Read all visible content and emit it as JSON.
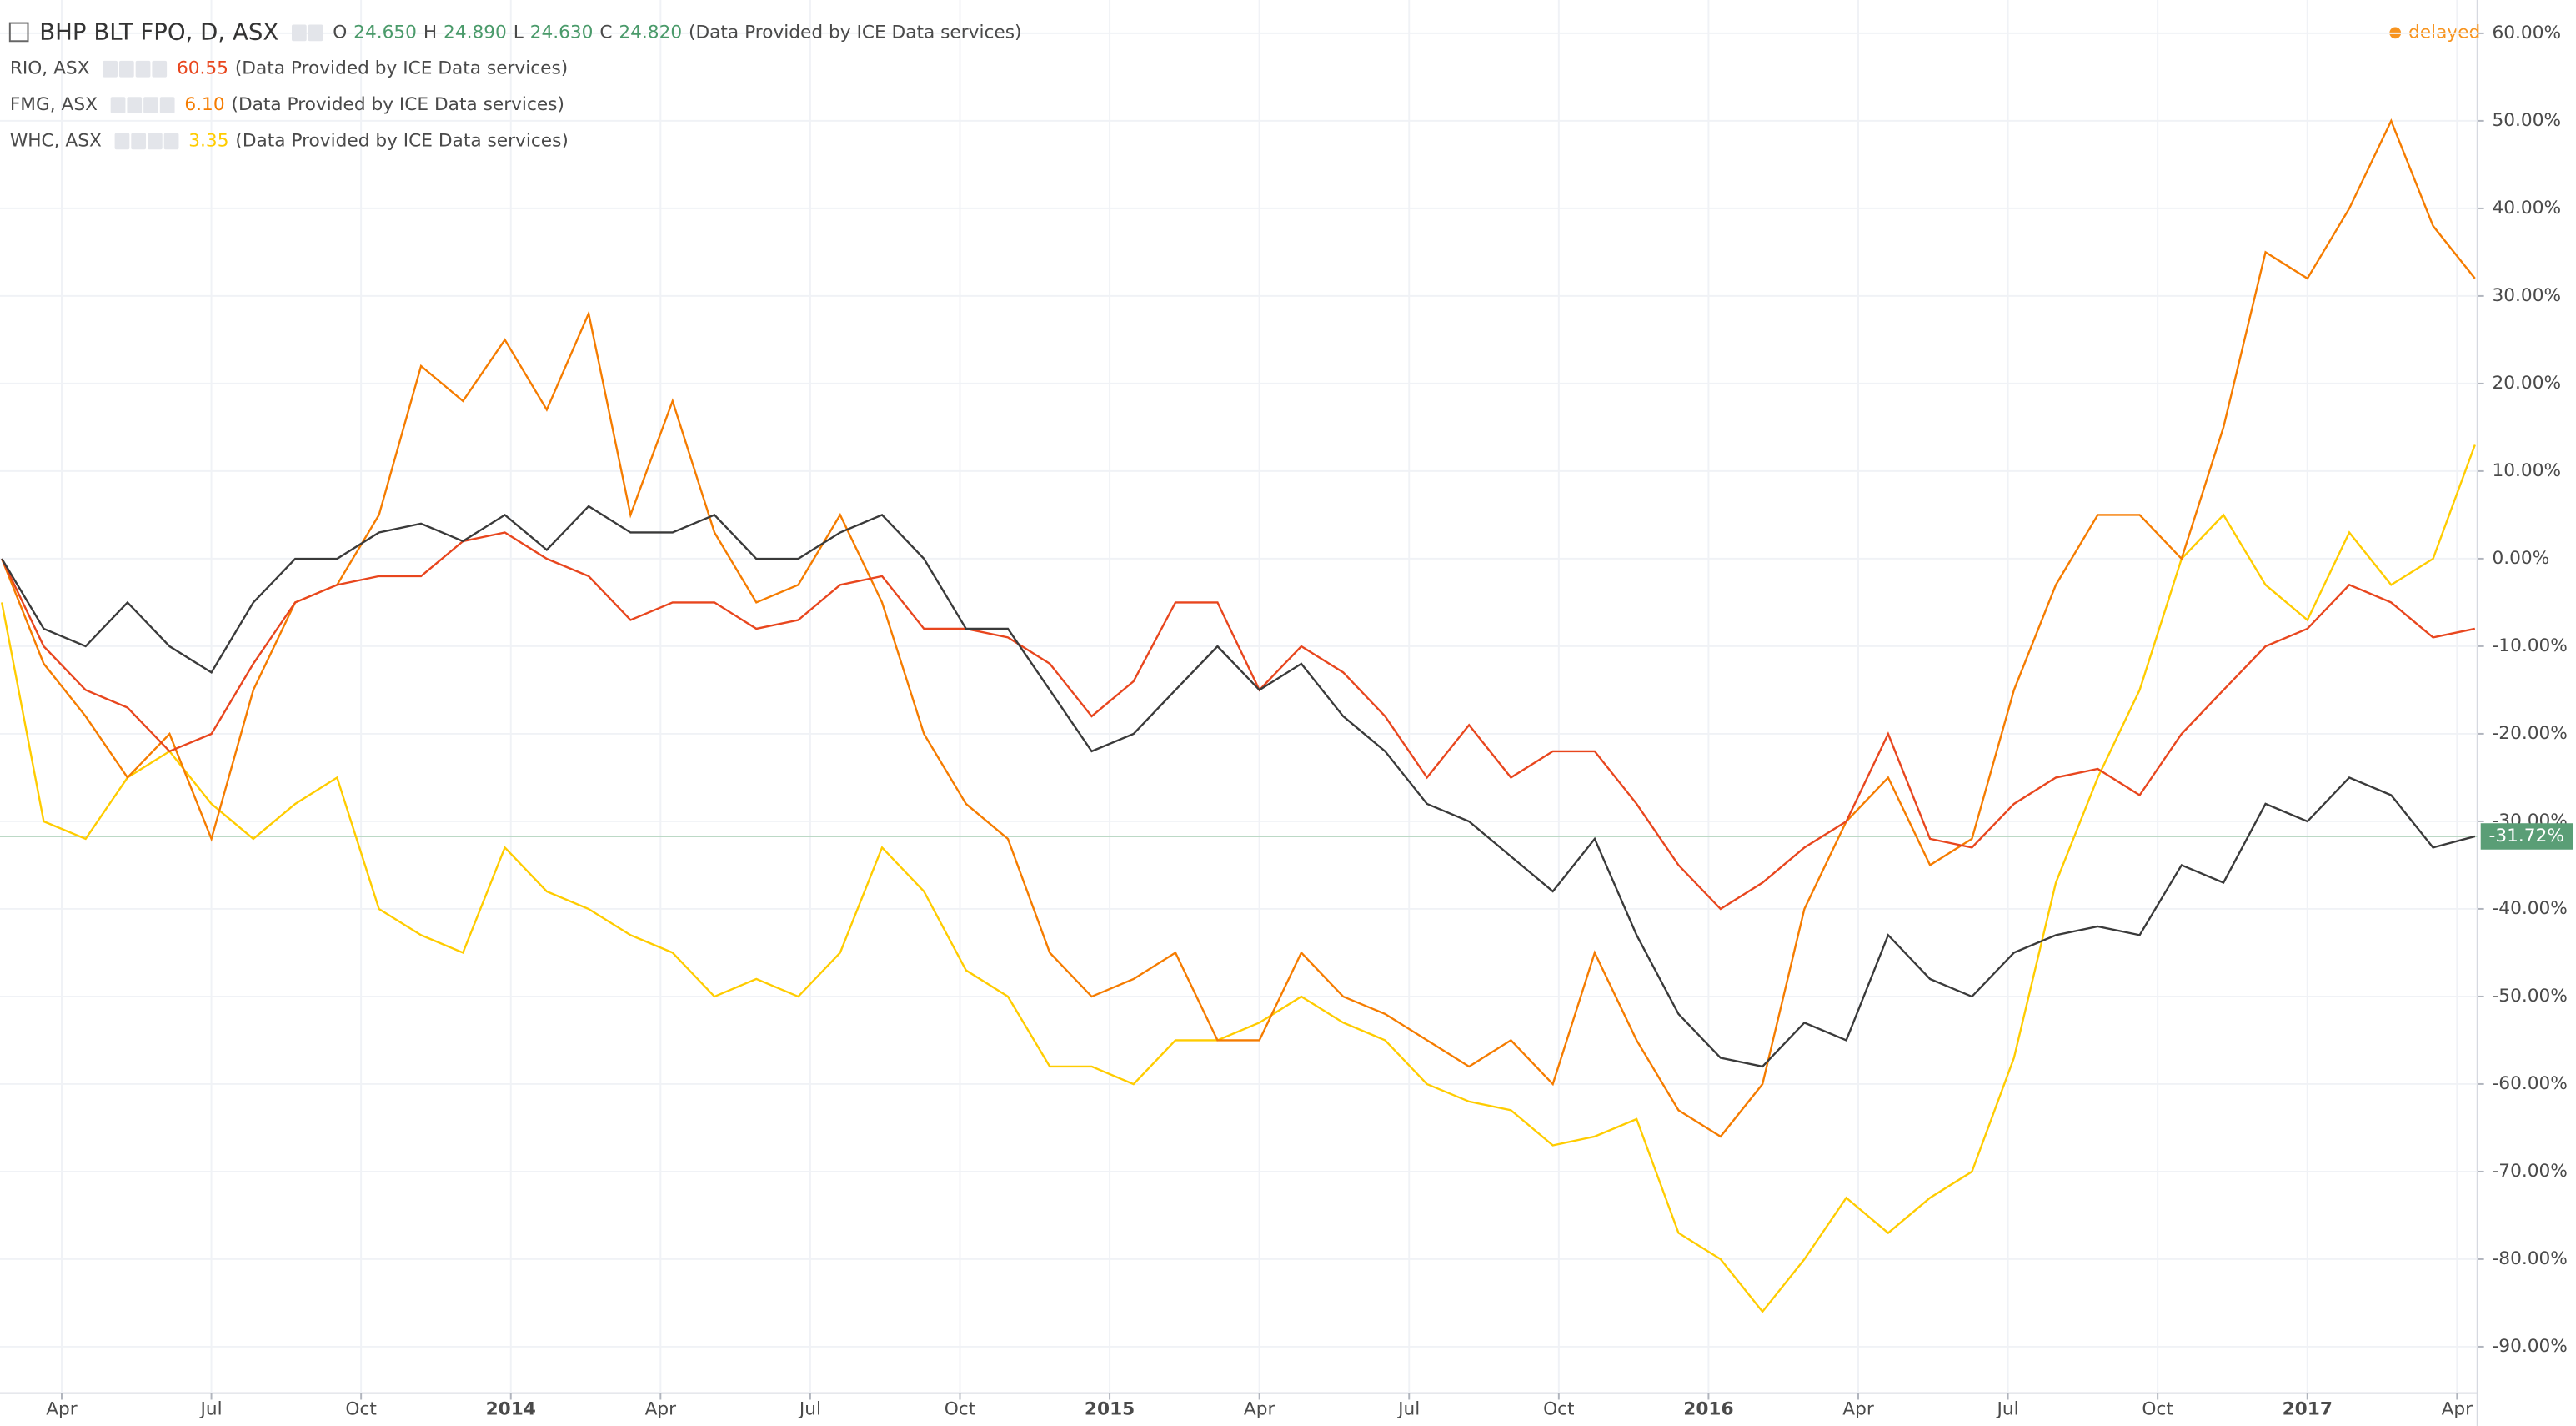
{
  "chart_data": {
    "type": "line",
    "delayed": "delayed",
    "source_note": "(Data Provided by ICE Data services)",
    "x": [
      2013.15,
      2013.22,
      2013.29,
      2013.36,
      2013.43,
      2013.5,
      2013.57,
      2013.64,
      2013.71,
      2013.78,
      2013.85,
      2013.92,
      2013.99,
      2014.06,
      2014.13,
      2014.2,
      2014.27,
      2014.34,
      2014.41,
      2014.48,
      2014.55,
      2014.62,
      2014.69,
      2014.76,
      2014.83,
      2014.9,
      2014.97,
      2015.04,
      2015.11,
      2015.18,
      2015.25,
      2015.32,
      2015.39,
      2015.46,
      2015.53,
      2015.6,
      2015.67,
      2015.74,
      2015.81,
      2015.88,
      2015.95,
      2016.02,
      2016.09,
      2016.16,
      2016.23,
      2016.3,
      2016.37,
      2016.44,
      2016.51,
      2016.58,
      2016.65,
      2016.72,
      2016.79,
      2016.86,
      2016.93,
      2017.0,
      2017.07,
      2017.14,
      2017.21,
      2017.28
    ],
    "xlim": [
      2013.147,
      2017.284
    ],
    "xticks": [
      {
        "value": 2013.25,
        "label": "Apr"
      },
      {
        "value": 2013.5,
        "label": "Jul"
      },
      {
        "value": 2013.75,
        "label": "Oct"
      },
      {
        "value": 2014,
        "label": "2014"
      },
      {
        "value": 2014.25,
        "label": "Apr"
      },
      {
        "value": 2014.5,
        "label": "Jul"
      },
      {
        "value": 2014.75,
        "label": "Oct"
      },
      {
        "value": 2015,
        "label": "2015"
      },
      {
        "value": 2015.25,
        "label": "Apr"
      },
      {
        "value": 2015.5,
        "label": "Jul"
      },
      {
        "value": 2015.75,
        "label": "Oct"
      },
      {
        "value": 2016,
        "label": "2016"
      },
      {
        "value": 2016.25,
        "label": "Apr"
      },
      {
        "value": 2016.5,
        "label": "Jul"
      },
      {
        "value": 2016.75,
        "label": "Oct"
      },
      {
        "value": 2017,
        "label": "2017"
      },
      {
        "value": 2017.25,
        "label": "Apr"
      }
    ],
    "ylim": [
      -95.3,
      63.8
    ],
    "yticks": [
      {
        "value": 60,
        "label": "60.00%"
      },
      {
        "value": 50,
        "label": "50.00%"
      },
      {
        "value": 40,
        "label": "40.00%"
      },
      {
        "value": 30,
        "label": "30.00%"
      },
      {
        "value": 20,
        "label": "20.00%"
      },
      {
        "value": 10,
        "label": "10.00%"
      },
      {
        "value": 0,
        "label": "0.00%"
      },
      {
        "value": -10,
        "label": "-10.00%"
      },
      {
        "value": -20,
        "label": "-20.00%"
      },
      {
        "value": -30,
        "label": "-30.00%"
      },
      {
        "value": -40,
        "label": "-40.00%"
      },
      {
        "value": -50,
        "label": "-50.00%"
      },
      {
        "value": -60,
        "label": "-60.00%"
      },
      {
        "value": -70,
        "label": "-70.00%"
      },
      {
        "value": -80,
        "label": "-80.00%"
      },
      {
        "value": -90,
        "label": "-90.00%"
      }
    ],
    "grid": true,
    "series": [
      {
        "name": "BHP BLT FPO, D, ASX",
        "color": "#3a3a3a",
        "ohlc": [
          {
            "label": "O",
            "value": "24.650"
          },
          {
            "label": "H",
            "value": "24.890"
          },
          {
            "label": "L",
            "value": "24.630"
          },
          {
            "label": "C",
            "value": "24.820"
          }
        ],
        "last_label": "-31.72%",
        "values": [
          0,
          -8,
          -10,
          -5,
          -10,
          -13,
          -5,
          0,
          0,
          3,
          4,
          2,
          5,
          1,
          6,
          3,
          3,
          5,
          0,
          0,
          3,
          5,
          0,
          -8,
          -8,
          -15,
          -22,
          -20,
          -15,
          -10,
          -15,
          -12,
          -18,
          -22,
          -28,
          -30,
          -34,
          -38,
          -32,
          -43,
          -52,
          -57,
          -58,
          -53,
          -55,
          -43,
          -48,
          -50,
          -45,
          -43,
          -42,
          -43,
          -35,
          -37,
          -28,
          -30,
          -25,
          -27,
          -33,
          -31.72
        ]
      },
      {
        "name": "RIO, ASX",
        "color": "#e8461e",
        "price": "60.55",
        "values": [
          0,
          -10,
          -15,
          -17,
          -22,
          -20,
          -12,
          -5,
          -3,
          -2,
          -2,
          2,
          3,
          0,
          -2,
          -7,
          -5,
          -5,
          -8,
          -7,
          -3,
          -2,
          -8,
          -8,
          -9,
          -12,
          -18,
          -14,
          -5,
          -5,
          -15,
          -10,
          -13,
          -18,
          -25,
          -19,
          -25,
          -22,
          -22,
          -28,
          -35,
          -40,
          -37,
          -33,
          -30,
          -20,
          -32,
          -33,
          -28,
          -25,
          -24,
          -27,
          -20,
          -15,
          -10,
          -8,
          -3,
          -5,
          -9,
          -8
        ]
      },
      {
        "name": "FMG, ASX",
        "color": "#f57c00",
        "price": "6.10",
        "values": [
          0,
          -12,
          -18,
          -25,
          -20,
          -32,
          -15,
          -5,
          -3,
          5,
          22,
          18,
          25,
          17,
          28,
          5,
          18,
          3,
          -5,
          -3,
          5,
          -5,
          -20,
          -28,
          -32,
          -45,
          -50,
          -48,
          -45,
          -55,
          -55,
          -45,
          -50,
          -52,
          -55,
          -58,
          -55,
          -60,
          -45,
          -55,
          -63,
          -66,
          -60,
          -40,
          -30,
          -25,
          -35,
          -32,
          -15,
          -3,
          5,
          5,
          0,
          15,
          35,
          32,
          40,
          50,
          38,
          32
        ]
      },
      {
        "name": "WHC, ASX",
        "color": "#ffcc00",
        "price": "3.35",
        "values": [
          -5,
          -30,
          -32,
          -25,
          -22,
          -28,
          -32,
          -28,
          -25,
          -40,
          -43,
          -45,
          -33,
          -38,
          -40,
          -43,
          -45,
          -50,
          -48,
          -50,
          -45,
          -33,
          -38,
          -47,
          -50,
          -58,
          -58,
          -60,
          -55,
          -55,
          -53,
          -50,
          -53,
          -55,
          -60,
          -62,
          -63,
          -67,
          -66,
          -64,
          -77,
          -80,
          -86,
          -80,
          -73,
          -77,
          -73,
          -70,
          -57,
          -37,
          -25,
          -15,
          0,
          5,
          -3,
          -7,
          3,
          -3,
          0,
          13
        ]
      }
    ]
  }
}
